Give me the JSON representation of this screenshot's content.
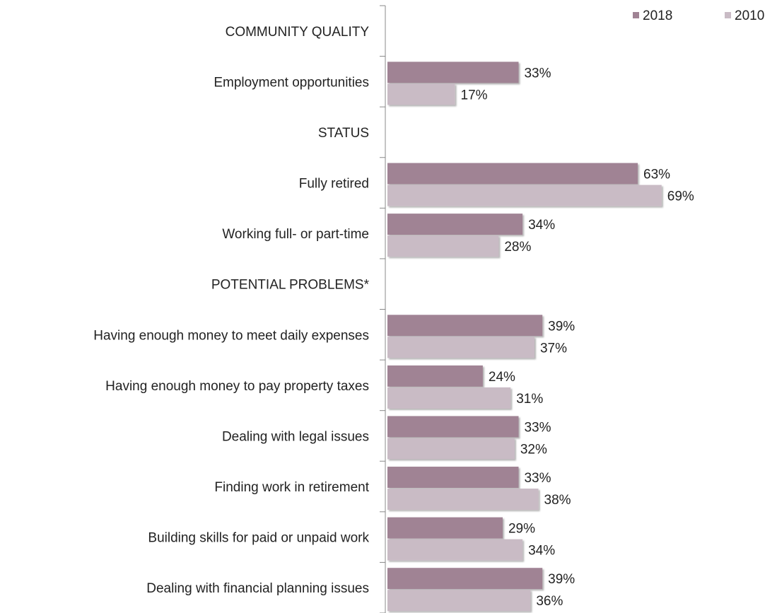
{
  "chart_data": {
    "type": "bar",
    "orientation": "horizontal",
    "categories": [
      "COMMUNITY QUALITY",
      "Employment opportunities",
      "STATUS",
      "Fully retired",
      "Working full- or part-time",
      "POTENTIAL PROBLEMS*",
      "Having enough money to meet daily expenses",
      "Having enough money to pay property taxes",
      "Dealing with legal issues",
      "Finding work in retirement",
      "Building skills for paid or unpaid work",
      "Dealing with financial planning issues"
    ],
    "series": [
      {
        "name": "2018",
        "color": "#a08394",
        "values": [
          null,
          33,
          null,
          63,
          34,
          null,
          39,
          24,
          33,
          33,
          29,
          39
        ],
        "value_labels": [
          null,
          "33%",
          null,
          "63%",
          "34%",
          null,
          "39%",
          "24%",
          "33%",
          "33%",
          "29%",
          "39%"
        ]
      },
      {
        "name": "2010",
        "color": "#c9bbc5",
        "values": [
          null,
          17,
          null,
          69,
          28,
          null,
          37,
          31,
          32,
          38,
          34,
          36
        ],
        "value_labels": [
          null,
          "17%",
          null,
          "69%",
          "28%",
          null,
          "37%",
          "31%",
          "32%",
          "38%",
          "34%",
          "36%"
        ]
      }
    ],
    "legend": "upper right"
  }
}
